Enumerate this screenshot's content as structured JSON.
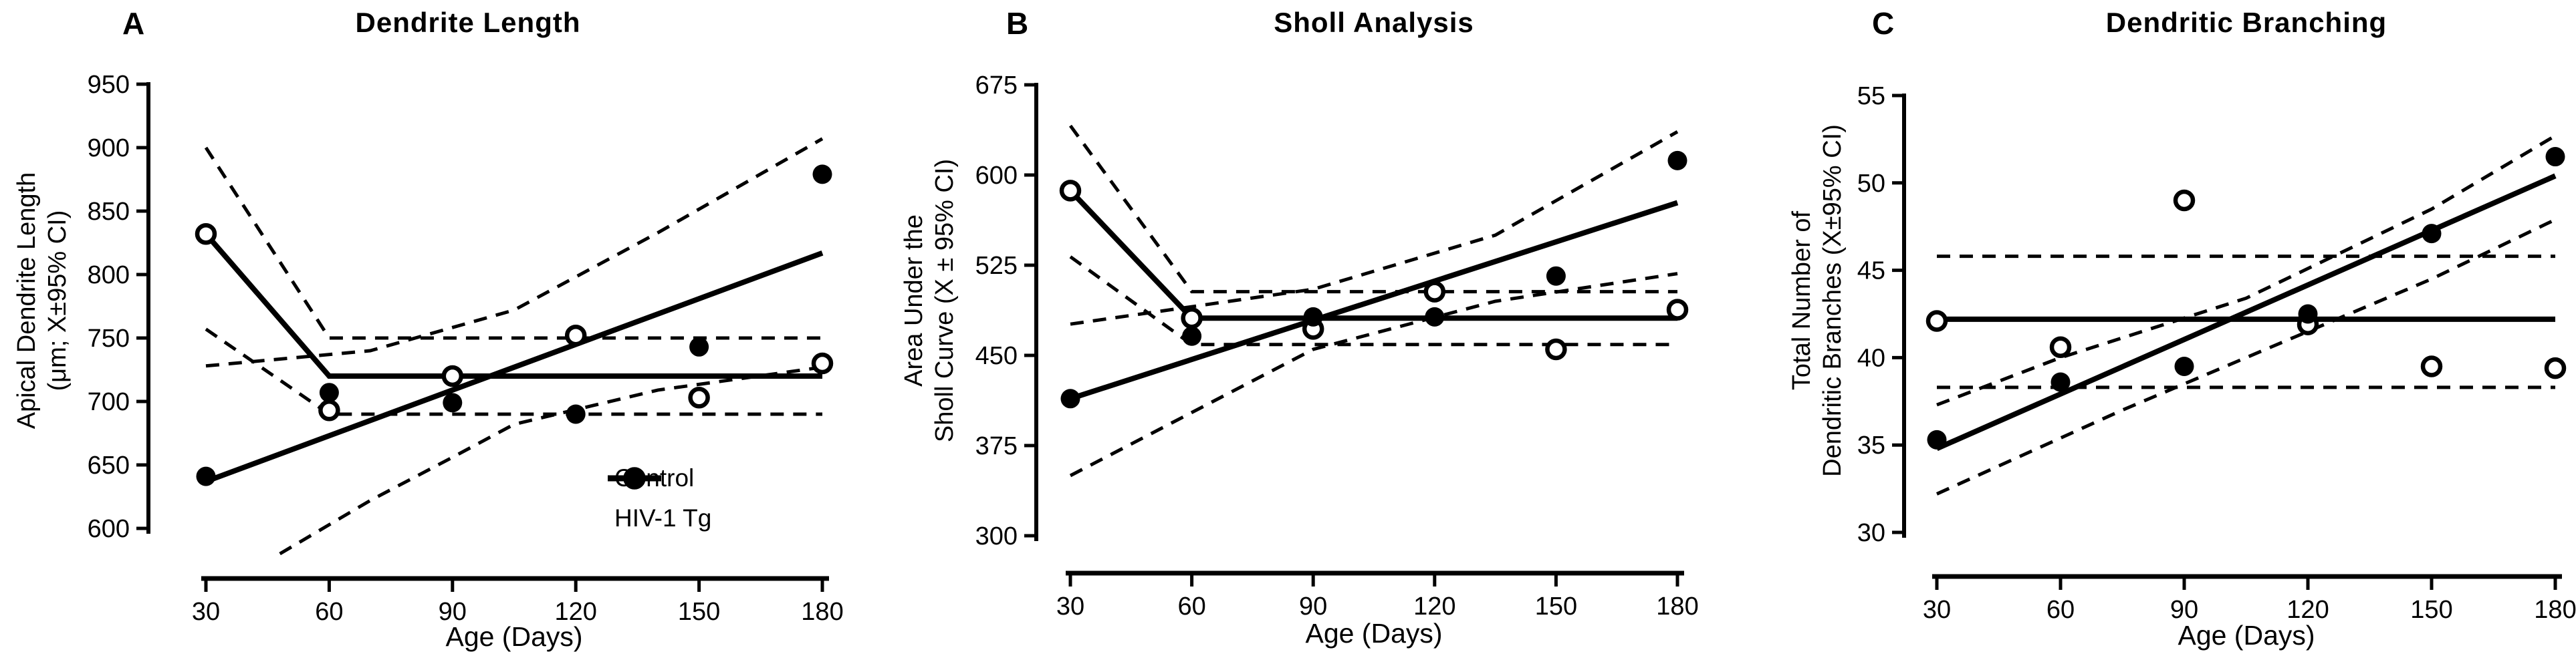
{
  "figure_type": "three-panel scatter with regression fits and 95% CI bands",
  "xlabel": "Age (Days)",
  "chart_data": [
    {
      "type": "scatter",
      "panel_label": "A",
      "title": "Dendrite Length",
      "ylabel": [
        "Apical Dendrite  Length",
        "(μm; X±95% CI)"
      ],
      "xlabel": "Age (Days)",
      "x_ticks": [
        30,
        60,
        90,
        120,
        150,
        180
      ],
      "y_ticks": [
        600,
        650,
        700,
        750,
        800,
        850,
        900,
        950
      ],
      "ylim": [
        600,
        950
      ],
      "xlim": [
        30,
        180
      ],
      "grid": false,
      "series": [
        {
          "name": "Control",
          "marker": "open",
          "x": [
            30,
            60,
            90,
            120,
            150,
            180
          ],
          "values": [
            832,
            693,
            720,
            752,
            703,
            730
          ]
        },
        {
          "name": "HIV-1 Tg",
          "marker": "filled",
          "x": [
            30,
            60,
            90,
            120,
            150,
            180
          ],
          "values": [
            641,
            707,
            699,
            690,
            743,
            879
          ]
        }
      ],
      "fit_lines": [
        {
          "series": "Control",
          "shape": "segmented-flat-after-60",
          "points": [
            [
              30,
              832
            ],
            [
              60,
              720
            ],
            [
              180,
              720
            ]
          ]
        },
        {
          "series": "HIV-1 Tg",
          "shape": "linear",
          "points": [
            [
              30,
              637
            ],
            [
              180,
              817
            ]
          ]
        }
      ],
      "ci_lines": [
        {
          "series": "Control",
          "bound": "upper",
          "points": [
            [
              30,
              900
            ],
            [
              60,
              750
            ],
            [
              180,
              750
            ]
          ]
        },
        {
          "series": "Control",
          "bound": "lower",
          "points": [
            [
              30,
              757
            ],
            [
              60,
              690
            ],
            [
              180,
              690
            ]
          ]
        },
        {
          "series": "HIV-1 Tg",
          "bound": "upper",
          "points": [
            [
              30,
              728
            ],
            [
              70,
              740
            ],
            [
              105,
              772
            ],
            [
              140,
              833
            ],
            [
              180,
              907
            ]
          ]
        },
        {
          "series": "HIV-1 Tg",
          "bound": "lower",
          "points": [
            [
              48,
              580
            ],
            [
              70,
              622
            ],
            [
              90,
              656
            ],
            [
              105,
              682
            ],
            [
              140,
              709
            ],
            [
              180,
              727
            ]
          ]
        }
      ],
      "legend": {
        "position": "lower-right-of-panel",
        "items": [
          {
            "label": "Control",
            "marker": "open"
          },
          {
            "label": "HIV-1 Tg",
            "marker": "filled"
          }
        ]
      }
    },
    {
      "type": "scatter",
      "panel_label": "B",
      "title": "Sholl  Analysis",
      "ylabel": [
        "Area Under the",
        "Sholl Curve (X ± 95% CI)"
      ],
      "xlabel": "Age (Days)",
      "x_ticks": [
        30,
        60,
        90,
        120,
        150,
        180
      ],
      "y_ticks": [
        300,
        375,
        450,
        525,
        600,
        675
      ],
      "ylim": [
        300,
        675
      ],
      "xlim": [
        30,
        180
      ],
      "grid": false,
      "series": [
        {
          "name": "Control",
          "marker": "open",
          "x": [
            30,
            60,
            90,
            120,
            150,
            180
          ],
          "values": [
            587,
            481,
            472,
            503,
            455,
            488
          ]
        },
        {
          "name": "HIV-1 Tg",
          "marker": "filled",
          "x": [
            30,
            60,
            90,
            120,
            150,
            180
          ],
          "values": [
            414,
            466,
            482,
            482,
            516,
            612
          ]
        }
      ],
      "fit_lines": [
        {
          "series": "Control",
          "shape": "segmented-flat-after-60",
          "points": [
            [
              30,
              587
            ],
            [
              60,
              481
            ],
            [
              180,
              481
            ]
          ]
        },
        {
          "series": "HIV-1 Tg",
          "shape": "linear",
          "points": [
            [
              30,
              414
            ],
            [
              180,
              577
            ]
          ]
        }
      ],
      "ci_lines": [
        {
          "series": "Control",
          "bound": "upper",
          "points": [
            [
              30,
              641
            ],
            [
              60,
              503
            ],
            [
              180,
              503
            ]
          ]
        },
        {
          "series": "Control",
          "bound": "lower",
          "points": [
            [
              30,
              532
            ],
            [
              60,
              459
            ],
            [
              180,
              459
            ]
          ]
        },
        {
          "series": "HIV-1 Tg",
          "bound": "upper",
          "points": [
            [
              30,
              476
            ],
            [
              90,
              505
            ],
            [
              135,
              550
            ],
            [
              180,
              636
            ]
          ]
        },
        {
          "series": "HIV-1 Tg",
          "bound": "lower",
          "points": [
            [
              30,
              350
            ],
            [
              90,
              455
            ],
            [
              135,
              495
            ],
            [
              180,
              518
            ]
          ]
        }
      ]
    },
    {
      "type": "scatter",
      "panel_label": "C",
      "title": "Dendritic Branching",
      "ylabel": [
        "Total Number of",
        "Dendritic Branches (X±95% CI)"
      ],
      "xlabel": "Age (Days)",
      "x_ticks": [
        30,
        60,
        90,
        120,
        150,
        180
      ],
      "y_ticks": [
        30,
        35,
        40,
        45,
        50,
        55
      ],
      "ylim": [
        30,
        55
      ],
      "xlim": [
        30,
        180
      ],
      "grid": false,
      "series": [
        {
          "name": "Control",
          "marker": "open",
          "x": [
            30,
            60,
            90,
            120,
            150,
            180
          ],
          "values": [
            42.1,
            40.6,
            49.0,
            41.9,
            39.5,
            39.4
          ]
        },
        {
          "name": "HIV-1 Tg",
          "marker": "filled",
          "x": [
            30,
            60,
            90,
            120,
            150,
            180
          ],
          "values": [
            35.3,
            38.6,
            39.5,
            42.5,
            47.1,
            51.5
          ]
        }
      ],
      "fit_lines": [
        {
          "series": "Control",
          "shape": "flat",
          "points": [
            [
              30,
              42.2
            ],
            [
              180,
              42.2
            ]
          ]
        },
        {
          "series": "HIV-1 Tg",
          "shape": "linear",
          "points": [
            [
              30,
              34.8
            ],
            [
              180,
              50.4
            ]
          ]
        }
      ],
      "ci_lines": [
        {
          "series": "Control",
          "bound": "upper",
          "points": [
            [
              30,
              45.8
            ],
            [
              180,
              45.8
            ]
          ]
        },
        {
          "series": "Control",
          "bound": "lower",
          "points": [
            [
              30,
              38.3
            ],
            [
              180,
              38.3
            ]
          ]
        },
        {
          "series": "HIV-1 Tg",
          "bound": "upper",
          "points": [
            [
              30,
              37.3
            ],
            [
              60,
              40.0
            ],
            [
              105,
              43.4
            ],
            [
              150,
              48.5
            ],
            [
              180,
              52.7
            ]
          ]
        },
        {
          "series": "HIV-1 Tg",
          "bound": "lower",
          "points": [
            [
              30,
              32.2
            ],
            [
              75,
              37.0
            ],
            [
              120,
              41.5
            ],
            [
              150,
              44.5
            ],
            [
              180,
              47.9
            ]
          ]
        }
      ]
    }
  ]
}
